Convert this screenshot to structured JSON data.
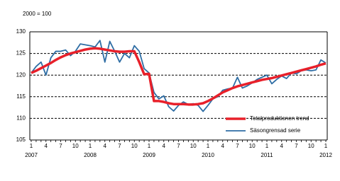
{
  "chart_data": {
    "type": "line",
    "ylabel": "2000 = 100",
    "categories": [
      "1",
      null,
      null,
      "4",
      null,
      null,
      "7",
      null,
      null,
      "10",
      null,
      null,
      "1",
      null,
      null,
      "4",
      null,
      null,
      "7",
      null,
      null,
      "10",
      null,
      null,
      "1",
      null,
      null,
      "4",
      null,
      null,
      "7",
      null,
      null,
      "10",
      null,
      null,
      "1",
      null,
      null,
      "4",
      null,
      null,
      "7",
      null,
      null,
      "10",
      null,
      null,
      "1",
      null,
      null,
      "4",
      null,
      null,
      "7",
      null,
      null,
      "10",
      null,
      null,
      "1"
    ],
    "year_labels": [
      "2007",
      null,
      null,
      null,
      null,
      null,
      null,
      null,
      null,
      null,
      null,
      null,
      "2008",
      null,
      null,
      null,
      null,
      null,
      null,
      null,
      null,
      null,
      null,
      null,
      "2009",
      null,
      null,
      null,
      null,
      null,
      null,
      null,
      null,
      null,
      null,
      null,
      "2010",
      null,
      null,
      null,
      null,
      null,
      null,
      null,
      null,
      null,
      null,
      null,
      "2011",
      null,
      null,
      null,
      null,
      null,
      null,
      null,
      null,
      null,
      null,
      null,
      "2012"
    ],
    "series": [
      {
        "name": "Totalproduktionen trend",
        "color": "#e8202a",
        "width": 3.5,
        "values": [
          120.5,
          121,
          121.6,
          122.2,
          122.8,
          123.5,
          124.1,
          124.6,
          125,
          125.3,
          125.6,
          125.9,
          126.1,
          126.2,
          126.1,
          125.9,
          125.7,
          125.5,
          125.4,
          125.4,
          125.5,
          125.5,
          123,
          120.2,
          120.3,
          114,
          114,
          113.8,
          113.5,
          113.3,
          113.3,
          113.3,
          113.2,
          113.2,
          113.3,
          113.5,
          114,
          114.6,
          115.3,
          116,
          116.5,
          117,
          117.4,
          117.7,
          118,
          118.3,
          118.6,
          118.9,
          119.1,
          119.3,
          119.6,
          119.9,
          120.2,
          120.5,
          120.8,
          121.1,
          121.4,
          121.7,
          122,
          122.4,
          122.7
        ]
      },
      {
        "name": "Säsongrensad serie",
        "color": "#2e6da4",
        "width": 1.8,
        "values": [
          120.5,
          122,
          123,
          120,
          124,
          125.5,
          125.5,
          125.8,
          124.5,
          125.5,
          127.2,
          127,
          126.8,
          126.5,
          128,
          123,
          127.8,
          125.5,
          123,
          125,
          124,
          126.8,
          125.5,
          121.5,
          120.5,
          116,
          114.5,
          115.2,
          112.7,
          111.7,
          113,
          113.8,
          113.2,
          113.4,
          113,
          111.6,
          113,
          114.5,
          115,
          116.5,
          116.8,
          117,
          119.5,
          117,
          117.5,
          118.2,
          119,
          119.5,
          120,
          118,
          119,
          119.8,
          119.2,
          120.5,
          120.3,
          121,
          121.2,
          121,
          121.2,
          123.5,
          122.8
        ]
      }
    ],
    "ylim": [
      105,
      130
    ],
    "yticks": [
      105,
      110,
      115,
      120,
      125,
      130
    ],
    "grid": true,
    "legend": "lower right"
  }
}
